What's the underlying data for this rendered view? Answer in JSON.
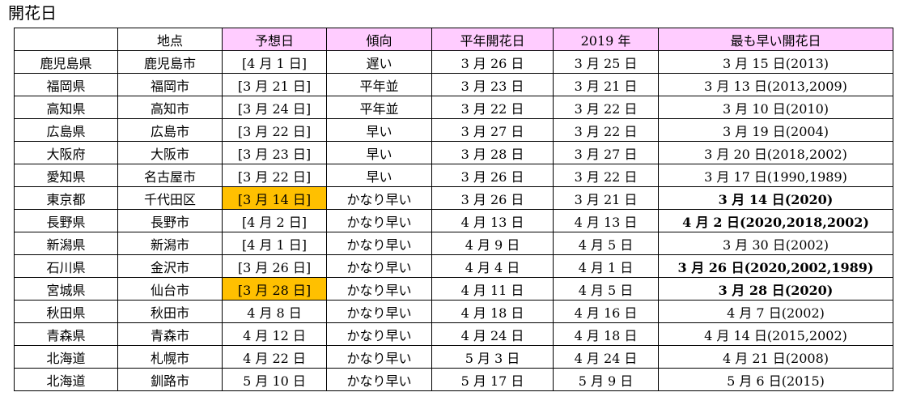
{
  "title": "開花日",
  "table": {
    "headers": [
      "",
      "地点",
      "予想日",
      "傾向",
      "平年開花日",
      "2019 年",
      "最も早い開花日"
    ],
    "rows": [
      [
        "鹿児島県",
        "鹿児島市",
        "[4 月 1 日]",
        "遅い",
        "3 月 26 日",
        "3 月 25 日",
        "3 月 15 日(2013)"
      ],
      [
        "福岡県",
        "福岡市",
        "[3 月 21 日]",
        "平年並",
        "3 月 23 日",
        "3 月 21 日",
        "3 月 13 日(2013,2009)"
      ],
      [
        "高知県",
        "高知市",
        "[3 月 24 日]",
        "平年並",
        "3 月 22 日",
        "3 月 22 日",
        "3 月 10 日(2010)"
      ],
      [
        "広島県",
        "広島市",
        "[3 月 22 日]",
        "早い",
        "3 月 27 日",
        "3 月 22 日",
        "3 月 19 日(2004)"
      ],
      [
        "大阪府",
        "大阪市",
        "[3 月 23 日]",
        "早い",
        "3 月 28 日",
        "3 月 27 日",
        "3 月 20 日(2018,2002)"
      ],
      [
        "愛知県",
        "名古屋市",
        "[3 月 22 日]",
        "早い",
        "3 月 26 日",
        "3 月 22 日",
        "3 月 17 日(1990,1989)"
      ],
      [
        "東京都",
        "千代田区",
        "[3 月 14 日]",
        "かなり早い",
        "3 月 26 日",
        "3 月 21 日",
        "3 月 14 日(2020)"
      ],
      [
        "長野県",
        "長野市",
        "[4 月 2 日]",
        "かなり早い",
        "4 月 13 日",
        "4 月 13 日",
        "4 月 2 日(2020,2018,2002)"
      ],
      [
        "新潟県",
        "新潟市",
        "[4 月 1 日]",
        "かなり早い",
        "4 月 9 日",
        "4 月 5 日",
        "3 月 30 日(2002)"
      ],
      [
        "石川県",
        "金沢市",
        "[3 月 26 日]",
        "かなり早い",
        "4 月 4 日",
        "4 月 1 日",
        "3 月 26 日(2020,2002,1989)"
      ],
      [
        "宮城県",
        "仙台市",
        "[3 月 28 日]",
        "かなり早い",
        "4 月 11 日",
        "4 月 5 日",
        "3 月 28 日(2020)"
      ],
      [
        "秋田県",
        "秋田市",
        "4 月 8 日",
        "かなり早い",
        "4 月 18 日",
        "4 月 16 日",
        "4 月 7 日(2002)"
      ],
      [
        "青森県",
        "青森市",
        "4 月 12 日",
        "かなり早い",
        "4 月 24 日",
        "4 月 18 日",
        "4 月 14 日(2015,2002)"
      ],
      [
        "北海道",
        "札幌市",
        "4 月 22 日",
        "かなり早い",
        "5 月 3 日",
        "4 月 24 日",
        "4 月 21 日(2008)"
      ],
      [
        "北海道",
        "釧路市",
        "5 月 10 日",
        "かなり早い",
        "5 月 17 日",
        "5 月 9 日",
        "5 月 6 日(2015)"
      ]
    ],
    "highlighted_forecast_rows": [
      6,
      10
    ],
    "bold_earliest_rows": [
      6,
      7,
      9,
      10
    ],
    "colors": {
      "header_pink": "#ffccff",
      "highlight_orange": "#ffc000"
    }
  }
}
